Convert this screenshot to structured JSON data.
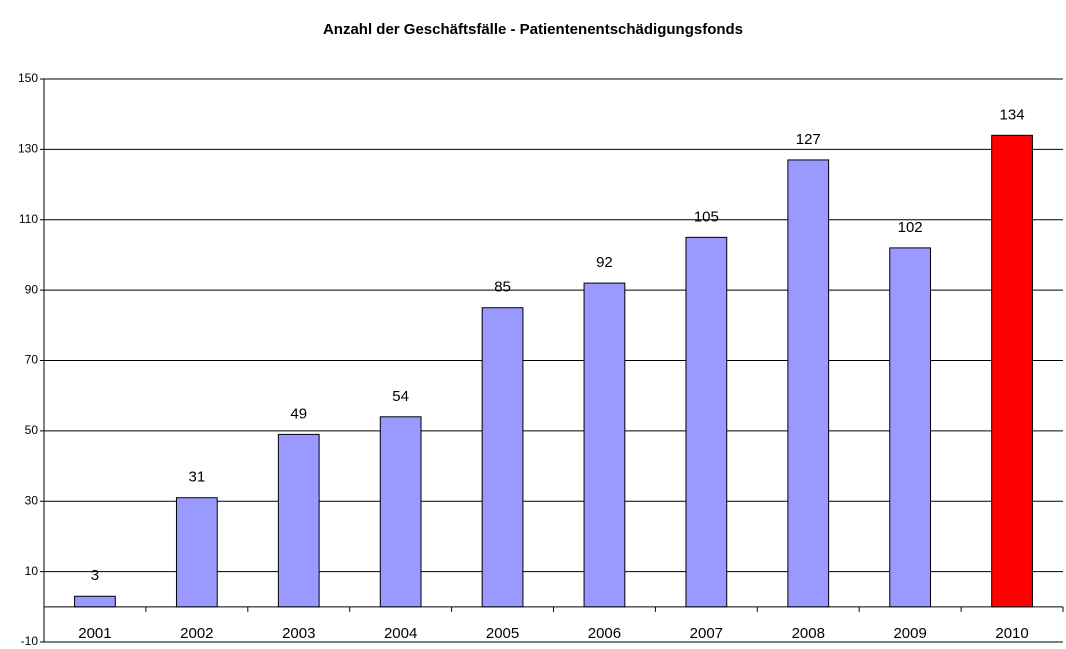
{
  "chart_data": {
    "type": "bar",
    "title": "Anzahl der Geschäftsfälle - Patientenentschädigungsfonds",
    "categories": [
      "2001",
      "2002",
      "2003",
      "2004",
      "2005",
      "2006",
      "2007",
      "2008",
      "2009",
      "2010"
    ],
    "values": [
      3,
      31,
      49,
      54,
      85,
      92,
      105,
      127,
      102,
      134
    ],
    "colors": [
      "#9999ff",
      "#9999ff",
      "#9999ff",
      "#9999ff",
      "#9999ff",
      "#9999ff",
      "#9999ff",
      "#9999ff",
      "#9999ff",
      "#ff0000"
    ],
    "ylim": [
      -10,
      150
    ],
    "yticks": [
      -10,
      10,
      30,
      50,
      70,
      90,
      110,
      130,
      150
    ],
    "grid": true
  }
}
